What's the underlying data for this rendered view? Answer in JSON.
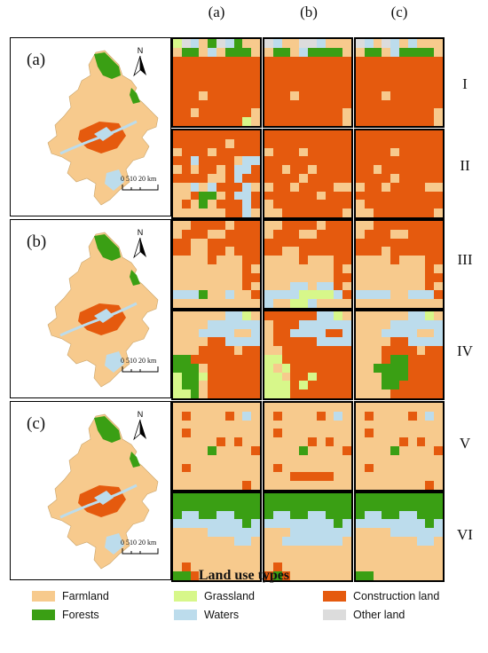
{
  "column_headers": [
    "(a)",
    "(b)",
    "(c)"
  ],
  "row_labels": [
    "I",
    "II",
    "III",
    "IV",
    "V",
    "VI"
  ],
  "overview_maps": [
    {
      "label": "(a)",
      "scale_text": "0 510 20 km"
    },
    {
      "label": "(b)",
      "scale_text": "0 510 20 km"
    },
    {
      "label": "(c)",
      "scale_text": "0 510 20 km"
    }
  ],
  "north_arrow_label": "N",
  "legend": {
    "title": "Land use types",
    "items": [
      {
        "key": "F",
        "label": "Farmland",
        "color": "#f7ca8d"
      },
      {
        "key": "T",
        "label": "Forests",
        "color": "#3a9f14"
      },
      {
        "key": "G",
        "label": "Grassland",
        "color": "#d7f78a"
      },
      {
        "key": "W",
        "label": "Waters",
        "color": "#bcdcec"
      },
      {
        "key": "C",
        "label": "Construction land",
        "color": "#e55a0e"
      },
      {
        "key": "O",
        "label": "Other land",
        "color": "#dcdcdc"
      }
    ]
  },
  "tiles": {
    "I": {
      "a": [
        "GOWFTOWTFF",
        "FTTFWFTTTF",
        "CCCCCCCCCC",
        "CCCCCCCCCC",
        "CCCCCCCCCC",
        "CCCCCCCCCC",
        "CCCFCCCCCC",
        "CCCCCCCCCC",
        "CCFCCCCCCF",
        "CCCCCCCCGF"
      ],
      "b": [
        "OWFFOOWFFF",
        "FTTFWTTTTF",
        "CCCCCCCCCC",
        "CCCCCCCCCC",
        "CCCCCCCCCC",
        "CCCCCCCCCC",
        "CCCFCCCCCC",
        "CCCCCCCCCC",
        "CCCCCCCCCF",
        "CCCCCCCCCF"
      ],
      "c": [
        "OWFOWFWFFF",
        "FTTFWTTTTF",
        "CCCCCCCCCC",
        "CCCCCCCCCC",
        "CCCCCCCCCC",
        "CCCCCCCCCC",
        "CCCFCCCCCC",
        "CCCCCCCCCC",
        "CCCCCCCCCF",
        "CCCCCCCCCF"
      ]
    },
    "II": {
      "a": [
        "CCCCCCCCCC",
        "CCCCCCFCCC",
        "FCCCFCCCCC",
        "CCWCCCCFWW",
        "FCFCCFCWWC",
        "CCCCFFCWCC",
        "FFWFWCCCWF",
        "FFCTTFCWWC",
        "FCFTFCCCWC",
        "FFFFFFCCWF"
      ],
      "b": [
        "CCCCCCCCCC",
        "CCCCCCCCCC",
        "FCCCFCCCCC",
        "CCCCCCCCCC",
        "CCFCCFCCCC",
        "CCCCFCCCCC",
        "FCCFCCCCFF",
        "CCCCCCFCCC",
        "FCCCCCCCCC",
        "FFCCCCCCCF"
      ],
      "c": [
        "CCCCCCCCCC",
        "CCCCCCCCCC",
        "CCCCFCCCCC",
        "CCCCCCCCCC",
        "CCFCCCCCCC",
        "CCCCFCCCCC",
        "FCCFCCCCFF",
        "CCCCCCCCCC",
        "FCCCCCCCCC",
        "FFCCCCCCCF"
      ]
    },
    "III": {
      "a": [
        "FFCCCCFCCC",
        "FCCCFFCCCC",
        "CCFFCCCCCC",
        "CCFFCCFCCC",
        "FFFFCFFFCC",
        "FFFFFFFFCF",
        "FFFFFFFFCC",
        "FFFFFFFFCF",
        "WWWTFFWFFC",
        "FFFFFFFFFF"
      ],
      "b": [
        "FFCCCCFCCC",
        "FCCCFFCCCC",
        "CCCCCCCCCC",
        "CCFFCCCCCC",
        "FFFFCFFFCC",
        "FFFFFFFFCF",
        "FFFFFFFFCC",
        "FFFWWFWWCF",
        "WWWWGGGGWC",
        "WFFGGWFFFF"
      ],
      "c": [
        "FFCCCCCCCC",
        "FCCCFFCCCC",
        "CCCCCCCCCC",
        "CCCFCCCCCC",
        "FFFFCFFFCC",
        "FFFFFFFFCF",
        "FFFFFFFFCC",
        "FFFFFFFFCF",
        "WWWWFFWWWC",
        "FFFFFFFFFF"
      ]
    },
    "IV": {
      "a": [
        "FFFFFFWWGF",
        "FFFFWWWWWW",
        "FFFWWWWFFW",
        "FFFFCCWWWW",
        "FFFCCCCFCC",
        "TTCCCCCCCC",
        "TTTFCCCCCC",
        "GTTGCCCCCC",
        "GTTFCCCCCC",
        "GGTFCCCCCC"
      ],
      "b": [
        "CCCCCCWWGF",
        "FCCCWWWWWW",
        "FCCWWWWCCW",
        "FCCCCCWWWW",
        "FFCCCCCCCC",
        "GGCCCCCCCC",
        "GFGCCCCCCC",
        "GGFCCGCCCC",
        "GGGCGCCCCC",
        "GGGCCCCCCC"
      ],
      "c": [
        "FFFFFFWWGF",
        "FFFFWWWWWW",
        "FFFWWWWFFW",
        "FFFFCCWWWW",
        "FFFCCCCFCC",
        "FFFCTTCCCC",
        "FFTTTTCCCC",
        "FFFTTTCCCC",
        "FFFTTCCCCC",
        "FFFFCCCCCC"
      ]
    },
    "V": {
      "a": [
        "FFFFFFFFFF",
        "FCFFFFCFWF",
        "FFFFFFFFFF",
        "FCFFFFFFFF",
        "FFFFFCFCFF",
        "FFFFTFFFFC",
        "FFFFFFFFFF",
        "FCFFFFFFFF",
        "FFFFFFFFFF",
        "FFFFFFFFCF"
      ],
      "b": [
        "FFFFFFFFFF",
        "FCFFFFCFWF",
        "FFFFFFFFFF",
        "FCFFFFFFFF",
        "FFFFFCFCFF",
        "FFFFTFFFFC",
        "FFFFFFFFFF",
        "FCFFFFFFFF",
        "FFFCCCCCFF",
        "FFFFFFFFFF"
      ],
      "c": [
        "FFFFFFFFFF",
        "FCFFFFCFWF",
        "FFFFFFFFFF",
        "FCFFFFFFFF",
        "FFFFFCFCFF",
        "FFFFTFFFFC",
        "FFFFFFFFFF",
        "FCFFFFFFFF",
        "FFFFFFFFFF",
        "FFFFFFFFCF"
      ]
    },
    "VI": {
      "a": [
        "TTTTTTTTTT",
        "TTTTTTTTTT",
        "TWWTTWWTTT",
        "WWWWWWWWTW",
        "FFFFWWWWWW",
        "FFFFFFFWWF",
        "FFFFFFFFFF",
        "FFFFFFFFFF",
        "FCFFFFFFFF",
        "TTCFFFFFFF"
      ],
      "b": [
        "TTTTTTTTTT",
        "TTTTTTTTTT",
        "TWWTTWWTTT",
        "WWWWWWWWTW",
        "FFFWWWWWWW",
        "FFWWWWWWWF",
        "FFFFFFFFFF",
        "FFFFFFFFFF",
        "FCFFFFFFFF",
        "CTCFFFFFFF"
      ],
      "c": [
        "TTTTTTTTTT",
        "TTTTTTTTTT",
        "TWWTTWWTTT",
        "WWWWWWWWTW",
        "FFFFWWWWWW",
        "FFFFFFFWWF",
        "FFFFFFFFFF",
        "FFFFFFFFFF",
        "FFFFFFFFFF",
        "TTFFFFFFFF"
      ]
    }
  }
}
